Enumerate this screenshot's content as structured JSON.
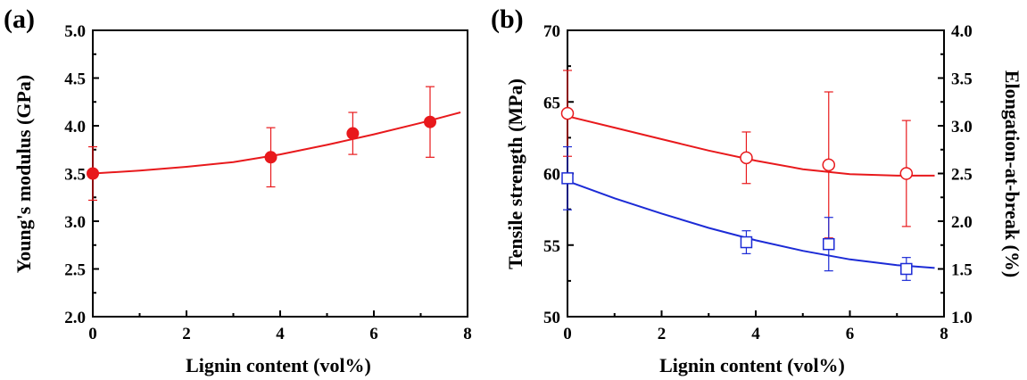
{
  "chart_data": [
    {
      "panel_label": "(a)",
      "type": "scatter",
      "xlabel": "Lignin content (vol%)",
      "ylabel": "Young's modulus (GPa)",
      "xlim": [
        0,
        8
      ],
      "ylim": [
        2.0,
        5.0
      ],
      "x_ticks": [
        "0",
        "2",
        "4",
        "6",
        "8"
      ],
      "y_ticks": [
        "2.0",
        "2.5",
        "3.0",
        "3.5",
        "4.0",
        "4.5",
        "5.0"
      ],
      "grid": false,
      "series": [
        {
          "color": "#e8191c",
          "marker": "filled-circle",
          "axis": "left",
          "x": [
            0,
            3.8,
            5.55,
            7.2
          ],
          "y": [
            3.5,
            3.67,
            3.92,
            4.04
          ],
          "error": [
            0.28,
            0.31,
            0.22,
            0.37
          ],
          "fit_curve": {
            "x": [
              0,
              1,
              2,
              3,
              4,
              5,
              6,
              7,
              7.85
            ],
            "y": [
              3.5,
              3.53,
              3.57,
              3.62,
              3.7,
              3.8,
              3.91,
              4.03,
              4.14
            ]
          }
        }
      ]
    },
    {
      "panel_label": "(b)",
      "type": "scatter",
      "xlabel": "Lignin content (vol%)",
      "ylabel": "Tensile strength (MPa)",
      "y2label": "Elongation-at-break (%)",
      "xlim": [
        0,
        8
      ],
      "ylim": [
        50,
        70
      ],
      "y2lim": [
        1.0,
        4.0
      ],
      "x_ticks": [
        "0",
        "2",
        "4",
        "6",
        "8"
      ],
      "y_ticks": [
        "50",
        "55",
        "60",
        "65",
        "70"
      ],
      "y2_ticks": [
        "1.0",
        "1.5",
        "2.0",
        "2.5",
        "3.0",
        "3.5",
        "4.0"
      ],
      "grid": false,
      "series": [
        {
          "color": "#e8191c",
          "marker": "open-circle",
          "axis": "left",
          "x": [
            0,
            3.8,
            5.55,
            7.2
          ],
          "y": [
            64.2,
            61.1,
            60.6,
            60.0
          ],
          "error": [
            3.0,
            1.8,
            5.1,
            3.7
          ],
          "fit_curve": {
            "x": [
              0,
              1,
              2,
              3,
              4,
              5,
              6,
              7,
              7.8
            ],
            "y": [
              64.0,
              63.2,
              62.4,
              61.6,
              60.9,
              60.3,
              59.95,
              59.85,
              59.85
            ]
          }
        },
        {
          "color": "#1c2bd6",
          "marker": "open-square",
          "axis": "right",
          "x": [
            0,
            3.8,
            5.55,
            7.2
          ],
          "y": [
            2.45,
            1.78,
            1.76,
            1.5
          ],
          "error": [
            0.33,
            0.12,
            0.28,
            0.12
          ],
          "fit_curve": {
            "x": [
              0,
              1,
              2,
              3,
              4,
              5,
              6,
              7,
              7.8
            ],
            "y": [
              2.42,
              2.24,
              2.08,
              1.93,
              1.8,
              1.69,
              1.6,
              1.54,
              1.51
            ]
          }
        }
      ]
    }
  ]
}
